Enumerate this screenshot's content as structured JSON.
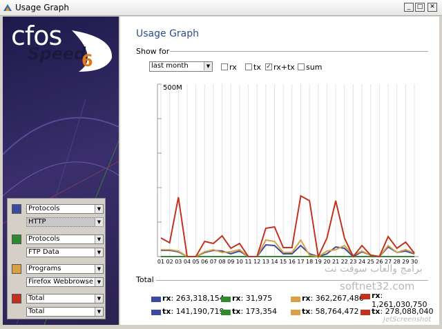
{
  "window": {
    "title": "Usage Graph"
  },
  "logo": {
    "brand": "cfos",
    "product": "Speed",
    "version": "6"
  },
  "filters": [
    "Protocols",
    "Protocols",
    "Programs",
    "Total"
  ],
  "header": {
    "title": "Usage Graph",
    "show_for": "Show for"
  },
  "controls": {
    "period": "last month",
    "options": [
      {
        "label": "rx",
        "checked": false
      },
      {
        "label": "tx",
        "checked": false
      },
      {
        "label": "rx+tx",
        "checked": true
      },
      {
        "label": "sum",
        "checked": false
      }
    ]
  },
  "chart_data": {
    "type": "line",
    "categories": [
      "01",
      "02",
      "03",
      "04",
      "05",
      "06",
      "07",
      "08",
      "09",
      "10",
      "11",
      "12",
      "13",
      "14",
      "15",
      "16",
      "17",
      "18",
      "19",
      "20",
      "21",
      "22",
      "23",
      "24",
      "25",
      "26",
      "27",
      "28",
      "29",
      "30"
    ],
    "series": [
      {
        "name": "HTTP",
        "color": "#3b4a9c",
        "values": [
          18,
          18,
          14,
          0,
          0,
          12,
          18,
          16,
          8,
          16,
          0,
          0,
          34,
          32,
          8,
          8,
          32,
          8,
          0,
          8,
          28,
          24,
          0,
          14,
          4,
          0,
          28,
          12,
          16,
          8
        ]
      },
      {
        "name": "FTP Data",
        "color": "#2f8a2f",
        "values": [
          0,
          0,
          0,
          0,
          0,
          0,
          0,
          0,
          0,
          0,
          0,
          0,
          0,
          0,
          0,
          0,
          0,
          0,
          0,
          0,
          0,
          0,
          0,
          0,
          0,
          0,
          0,
          0,
          0,
          0
        ]
      },
      {
        "name": "Firefox Webbrowse",
        "color": "#d9a046",
        "values": [
          20,
          20,
          16,
          0,
          0,
          14,
          20,
          12,
          14,
          20,
          0,
          0,
          48,
          44,
          12,
          12,
          48,
          4,
          0,
          16,
          20,
          32,
          4,
          16,
          4,
          0,
          32,
          12,
          20,
          10
        ]
      },
      {
        "name": "Total",
        "color": "#c0321e",
        "values": [
          54,
          40,
          172,
          0,
          0,
          44,
          38,
          60,
          24,
          38,
          0,
          0,
          82,
          86,
          26,
          26,
          176,
          162,
          0,
          54,
          162,
          54,
          0,
          32,
          4,
          0,
          58,
          24,
          42,
          10
        ]
      }
    ],
    "ylim": [
      0,
      500
    ],
    "yticks": [
      {
        "value": 500,
        "label": "500M"
      }
    ],
    "grid": true
  },
  "totals": {
    "title": "Total",
    "entries": [
      {
        "rx_label": "rx",
        "rx": "263,318,154",
        "tx_label": "tx",
        "tx": "141,190,719"
      },
      {
        "rx_label": "rx",
        "rx": "31,975",
        "tx_label": "tx",
        "tx": "173,354"
      },
      {
        "rx_label": "rx",
        "rx": "362,267,486",
        "tx_label": "tx",
        "tx": "58,764,472"
      },
      {
        "rx_label": "rx",
        "rx": "1,261,030,750",
        "tx_label": "tx",
        "tx": "278,088,040"
      }
    ]
  },
  "watermarks": [
    "برامج والعاب سوفت نت",
    "softnet32.com",
    "JetScreenshot"
  ]
}
